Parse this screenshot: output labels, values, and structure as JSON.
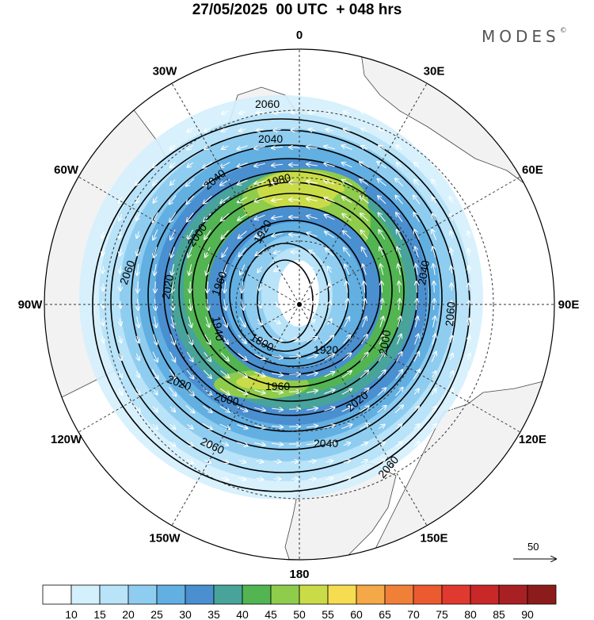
{
  "title": "27/05/2025  00 UTC  + 048 hrs",
  "brand": "MODES",
  "brand_mark": "©",
  "longitude_labels": [
    {
      "text": "0",
      "lon": 0
    },
    {
      "text": "30E",
      "lon": 30
    },
    {
      "text": "60E",
      "lon": 60
    },
    {
      "text": "90E",
      "lon": 90
    },
    {
      "text": "120E",
      "lon": 120
    },
    {
      "text": "150E",
      "lon": 150
    },
    {
      "text": "180",
      "lon": 180
    },
    {
      "text": "150W",
      "lon": -150
    },
    {
      "text": "120W",
      "lon": -120
    },
    {
      "text": "90W",
      "lon": -90
    },
    {
      "text": "60W",
      "lon": -60
    },
    {
      "text": "30W",
      "lon": -30
    }
  ],
  "contour_labels": [
    "2060",
    "2040",
    "2040",
    "1980",
    "1920",
    "2060",
    "2020",
    "2000",
    "1960",
    "1940",
    "1800",
    "1920",
    "2040",
    "2060",
    "2000",
    "1960",
    "2020",
    "2000",
    "2040",
    "2060",
    "2060",
    "2020"
  ],
  "reference_vector": {
    "value": "50"
  },
  "colorbar": {
    "ticks": [
      "10",
      "15",
      "20",
      "25",
      "30",
      "35",
      "40",
      "45",
      "50",
      "55",
      "60",
      "65",
      "70",
      "75",
      "80",
      "85",
      "90"
    ],
    "colors": [
      "#ffffff",
      "#d4f0fc",
      "#b8e3f8",
      "#8fcdf0",
      "#62afe2",
      "#4a8fd0",
      "#48a49a",
      "#52b552",
      "#8fcc4c",
      "#c9dc48",
      "#f6dc50",
      "#f4a848",
      "#f08038",
      "#ec5a30",
      "#e03a30",
      "#c82828",
      "#a82024",
      "#8c1c1c"
    ]
  },
  "chart_data": {
    "type": "polar-stereographic map",
    "projection": "north polar stereographic",
    "fields": [
      "geopotential height contours",
      "wind speed shading",
      "wind vectors"
    ],
    "contour_values": [
      1800,
      1920,
      1940,
      1960,
      1980,
      2000,
      2020,
      2040,
      2060
    ],
    "shading_levels": [
      10,
      15,
      20,
      25,
      30,
      35,
      40,
      45,
      50,
      55,
      60,
      65,
      70,
      75,
      80,
      85,
      90
    ],
    "meridian_interval_deg": 30
  }
}
